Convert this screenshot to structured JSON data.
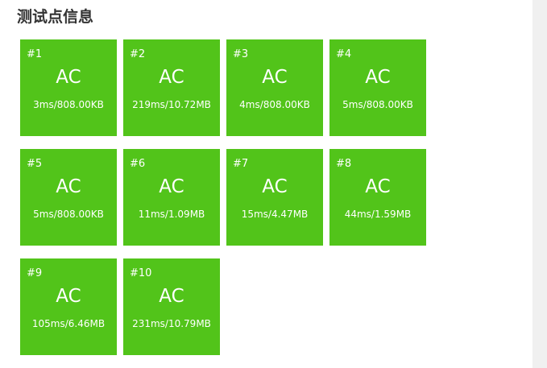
{
  "section": {
    "title": "测试点信息"
  },
  "colors": {
    "ac_green": "#52c41a",
    "text_white": "#ffffff",
    "title_dark": "#333333"
  },
  "cases": [
    {
      "id": "#1",
      "status": "AC",
      "detail": "3ms/808.00KB"
    },
    {
      "id": "#2",
      "status": "AC",
      "detail": "219ms/10.72MB"
    },
    {
      "id": "#3",
      "status": "AC",
      "detail": "4ms/808.00KB"
    },
    {
      "id": "#4",
      "status": "AC",
      "detail": "5ms/808.00KB"
    },
    {
      "id": "#5",
      "status": "AC",
      "detail": "5ms/808.00KB"
    },
    {
      "id": "#6",
      "status": "AC",
      "detail": "11ms/1.09MB"
    },
    {
      "id": "#7",
      "status": "AC",
      "detail": "15ms/4.47MB"
    },
    {
      "id": "#8",
      "status": "AC",
      "detail": "44ms/1.59MB"
    },
    {
      "id": "#9",
      "status": "AC",
      "detail": "105ms/6.46MB"
    },
    {
      "id": "#10",
      "status": "AC",
      "detail": "231ms/10.79MB"
    }
  ]
}
